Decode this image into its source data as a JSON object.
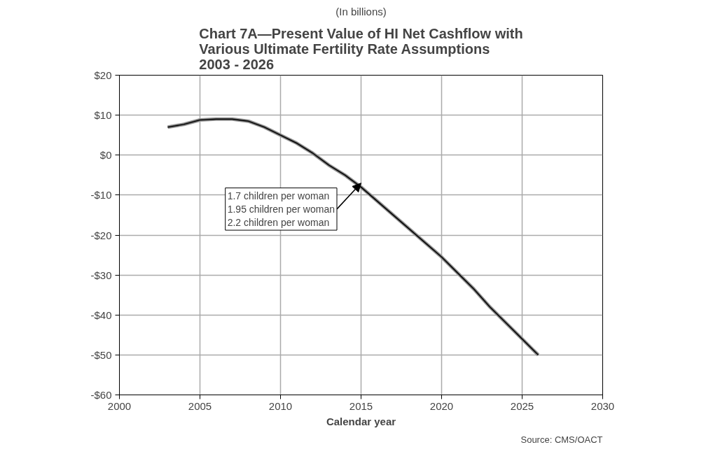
{
  "chart_data": {
    "type": "line",
    "title": "Chart 7A—Present Value of HI Net Cashflow with\nVarious Ultimate Fertility Rate Assumptions\n2003 - 2026",
    "subtitle": "(In billions)",
    "xlabel": "Calendar year",
    "x": [
      2003,
      2004,
      2005,
      2006,
      2007,
      2008,
      2009,
      2010,
      2011,
      2012,
      2013,
      2014,
      2015,
      2016,
      2017,
      2018,
      2019,
      2020,
      2021,
      2022,
      2023,
      2024,
      2025,
      2026
    ],
    "series": [
      {
        "color": "#999999",
        "values": [
          7,
          7.7,
          8.8,
          9,
          9,
          8.5,
          7,
          5,
          3,
          0.5,
          -2.5,
          -5,
          -8,
          -11.5,
          -15,
          -18.5,
          -22,
          -25.5,
          -29.5,
          -33.5,
          -38,
          -42,
          -46,
          -50
        ]
      },
      {
        "color": "#555555",
        "values": [
          7,
          7.7,
          8.8,
          9,
          9,
          8.5,
          7,
          5,
          3,
          0.5,
          -2.5,
          -5,
          -8,
          -11.5,
          -15,
          -18.5,
          -22,
          -25.5,
          -29.5,
          -33.5,
          -38,
          -42,
          -46,
          -50
        ]
      },
      {
        "color": "#000000",
        "values": [
          7,
          7.7,
          8.8,
          9,
          9,
          8.5,
          7,
          5,
          3,
          0.5,
          -2.5,
          -5,
          -8,
          -11.5,
          -15,
          -18.5,
          -22,
          -25.5,
          -29.5,
          -33.5,
          -38,
          -42,
          -46,
          -50
        ]
      }
    ],
    "xlim": [
      2000,
      2030
    ],
    "xticks": [
      2000,
      2005,
      2010,
      2015,
      2020,
      2025,
      2030
    ],
    "ylim": [
      -60,
      20
    ],
    "yticks": [
      {
        "value": -60,
        "label": "-$60"
      },
      {
        "value": -50,
        "label": "-$50"
      },
      {
        "value": -40,
        "label": "-$40"
      },
      {
        "value": -30,
        "label": "-$30"
      },
      {
        "value": -20,
        "label": "-$20"
      },
      {
        "value": -10,
        "label": "-$10"
      },
      {
        "value": 0,
        "label": "$0"
      },
      {
        "value": 10,
        "label": "$10"
      },
      {
        "value": 20,
        "label": "$20"
      }
    ],
    "grid": true,
    "annotations": [
      {
        "text": "1.7   children per woman\n1.95 children per woman\n2.2   children per woman",
        "x": 2015,
        "y": -7
      },
      "Source: CMS/OACT"
    ]
  }
}
